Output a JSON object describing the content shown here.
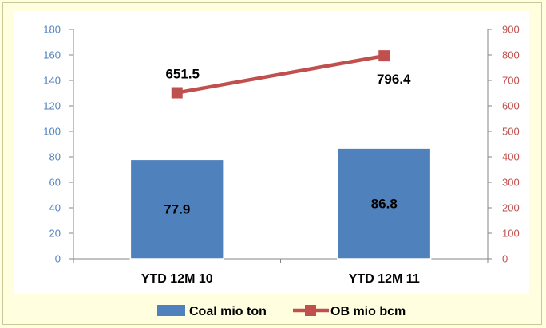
{
  "chart_data": {
    "type": "bar+line",
    "categories": [
      "YTD 12M 10",
      "YTD 12M 11"
    ],
    "series": [
      {
        "name": "Coal mio ton",
        "type": "bar",
        "axis": "left",
        "values": [
          77.9,
          86.8
        ],
        "data_labels": [
          "77.9",
          "86.8"
        ],
        "color": "#4F81BD"
      },
      {
        "name": "OB mio bcm",
        "type": "line",
        "axis": "right",
        "values": [
          651.5,
          796.4
        ],
        "data_labels": [
          "651.5",
          "796.4"
        ],
        "color": "#C0504D"
      }
    ],
    "y_left": {
      "min": 0,
      "max": 180,
      "step": 20,
      "ticks": [
        "0",
        "20",
        "40",
        "60",
        "80",
        "100",
        "120",
        "140",
        "160",
        "180"
      ],
      "color": "#4F81BD"
    },
    "y_right": {
      "min": 0,
      "max": 900,
      "step": 100,
      "ticks": [
        "0",
        "100",
        "200",
        "300",
        "400",
        "500",
        "600",
        "700",
        "800",
        "900"
      ],
      "color": "#C0504D"
    },
    "grid": false,
    "legend_position": "bottom"
  }
}
